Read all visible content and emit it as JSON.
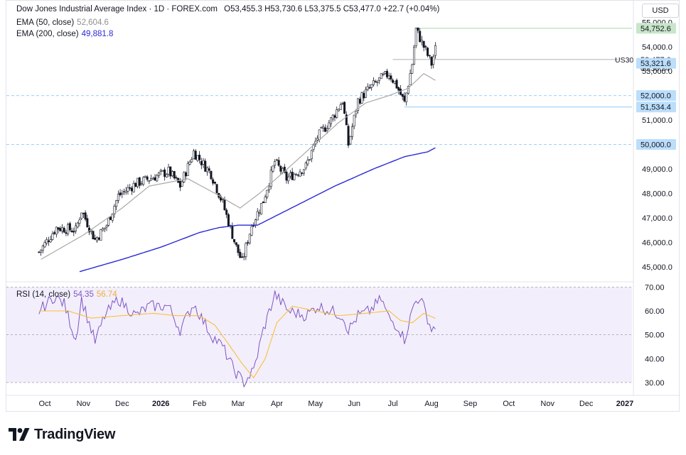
{
  "header": {
    "title": "Dow Jones Industrial Average Index · 1D · FOREX.com",
    "ohlc": {
      "o_label": "O",
      "o": "53,455.3",
      "h_label": "H",
      "h": "53,730.6",
      "l_label": "L",
      "l": "53,375.5",
      "c_label": "C",
      "c": "53,477.0",
      "change": "+22.7 (+0.04%)"
    },
    "ema50": {
      "label": "EMA (50, close)",
      "value": "52,604.6"
    },
    "ema200": {
      "label": "EMA (200, close)",
      "value": "49,881.8"
    },
    "currency": "USD"
  },
  "rsi_legend": {
    "label": "RSI (14, close)",
    "value": "54.35",
    "ma_value": "56.74"
  },
  "branding": {
    "name": "TradingView"
  },
  "colors": {
    "ema50": "#a9a9a9",
    "ema200": "#2a2ad8",
    "rsi": "#7e57c2",
    "rsi_ma": "#f7c23a",
    "rsi_band": "#f3eefc",
    "green_label": "#c8e6c9",
    "blue_label": "#bbdefb",
    "candle": "#131722"
  },
  "chart_data": [
    {
      "type": "candlestick",
      "title": "Dow Jones Industrial Average Index · 1D · FOREX.com",
      "symbol_label": "US30",
      "x_ticks": [
        "Oct",
        "Nov",
        "Dec",
        "2026",
        "Feb",
        "Mar",
        "Apr",
        "May",
        "Jun",
        "Jul",
        "Aug",
        "Sep",
        "Oct",
        "Nov",
        "Dec",
        "2027"
      ],
      "y_ticks": [
        "55,000.0",
        "54,000.0",
        "53,000.0",
        "52,000.0",
        "51,000.0",
        "50,000.0",
        "49,000.0",
        "48,000.0",
        "47,000.0",
        "46,000.0",
        "45,000.0"
      ],
      "y_tick_values": [
        55000,
        54000,
        53000,
        52000,
        51000,
        50000,
        49000,
        48000,
        47000,
        46000,
        45000
      ],
      "ylim": [
        44500,
        55300
      ],
      "x_month_index": [
        0,
        1,
        2,
        3,
        4,
        5,
        6,
        7,
        8,
        9,
        10,
        11,
        12,
        13,
        14,
        15
      ],
      "close_anchors": [
        [
          -0.15,
          45600
        ],
        [
          0.3,
          46600
        ],
        [
          0.8,
          46500
        ],
        [
          0.95,
          47300
        ],
        [
          1.3,
          46100
        ],
        [
          1.6,
          46700
        ],
        [
          1.9,
          47900
        ],
        [
          2.35,
          48400
        ],
        [
          2.7,
          48600
        ],
        [
          3.2,
          48900
        ],
        [
          3.5,
          48300
        ],
        [
          3.85,
          49700
        ],
        [
          4.3,
          48800
        ],
        [
          4.6,
          47600
        ],
        [
          4.95,
          45800
        ],
        [
          5.1,
          45200
        ],
        [
          5.35,
          46700
        ],
        [
          5.65,
          47700
        ],
        [
          5.95,
          49300
        ],
        [
          6.25,
          48600
        ],
        [
          6.75,
          49100
        ],
        [
          7.05,
          50300
        ],
        [
          7.4,
          51000
        ],
        [
          7.7,
          51800
        ],
        [
          7.85,
          50000
        ],
        [
          8.1,
          51800
        ],
        [
          8.4,
          52300
        ],
        [
          8.7,
          52700
        ],
        [
          8.9,
          52900
        ],
        [
          9.1,
          52400
        ],
        [
          9.3,
          51700
        ],
        [
          9.5,
          53300
        ],
        [
          9.6,
          54700
        ],
        [
          9.8,
          54000
        ],
        [
          10.0,
          53300
        ],
        [
          10.1,
          53900
        ],
        [
          10.12,
          53477
        ]
      ],
      "ema50_anchors": [
        [
          -0.1,
          45300
        ],
        [
          1.0,
          46300
        ],
        [
          2.0,
          47400
        ],
        [
          2.7,
          48300
        ],
        [
          3.7,
          48600
        ],
        [
          4.4,
          48000
        ],
        [
          5.05,
          47400
        ],
        [
          5.55,
          48000
        ],
        [
          6.2,
          48900
        ],
        [
          6.9,
          49900
        ],
        [
          7.6,
          50900
        ],
        [
          8.3,
          51700
        ],
        [
          8.9,
          52000
        ],
        [
          9.4,
          52300
        ],
        [
          9.8,
          52900
        ],
        [
          10.12,
          52604.6
        ]
      ],
      "ema200_anchors": [
        [
          0.9,
          44800
        ],
        [
          2.0,
          45300
        ],
        [
          3.0,
          45800
        ],
        [
          4.0,
          46400
        ],
        [
          4.5,
          46600
        ],
        [
          5.0,
          46700
        ],
        [
          5.5,
          46700
        ],
        [
          6.5,
          47500
        ],
        [
          7.5,
          48300
        ],
        [
          8.5,
          49000
        ],
        [
          9.3,
          49500
        ],
        [
          9.9,
          49700
        ],
        [
          10.12,
          49881.8
        ]
      ],
      "price_lines": [
        {
          "value": 54752.6,
          "label": "54,752.6",
          "style": "solid",
          "label_color": "green"
        },
        {
          "value": 53477.0,
          "label": "53,477.0",
          "sub_label": "06:38:24",
          "style": "solid",
          "label_color": "none"
        },
        {
          "value": 53321.6,
          "label": "53,321.6",
          "style": "none",
          "label_color": "blue"
        },
        {
          "value": 52000.0,
          "label": "52,000.0",
          "style": "dashed",
          "label_color": "blue"
        },
        {
          "value": 51534.4,
          "label": "51,534.4",
          "style": "solid",
          "label_color": "blue"
        },
        {
          "value": 50000.0,
          "label": "50,000.0",
          "style": "dashed",
          "label_color": "blue"
        }
      ]
    },
    {
      "type": "line",
      "title": "RSI (14, close)",
      "y_ticks": [
        "70.00",
        "60.00",
        "50.00",
        "40.00",
        "30.00"
      ],
      "y_tick_values": [
        70,
        60,
        50,
        40,
        30
      ],
      "ylim": [
        27,
        71
      ],
      "band": [
        30,
        70
      ],
      "rsi_anchors": [
        [
          -0.15,
          60
        ],
        [
          0.25,
          66
        ],
        [
          0.5,
          63
        ],
        [
          0.8,
          48
        ],
        [
          0.95,
          65
        ],
        [
          1.3,
          47
        ],
        [
          1.55,
          58
        ],
        [
          1.9,
          65
        ],
        [
          2.35,
          58
        ],
        [
          2.7,
          62
        ],
        [
          3.2,
          62
        ],
        [
          3.5,
          52
        ],
        [
          3.85,
          63
        ],
        [
          4.3,
          50
        ],
        [
          4.6,
          45
        ],
        [
          4.9,
          35
        ],
        [
          5.15,
          30
        ],
        [
          5.4,
          35
        ],
        [
          5.65,
          52
        ],
        [
          5.95,
          67
        ],
        [
          6.3,
          60
        ],
        [
          6.75,
          58
        ],
        [
          7.05,
          62
        ],
        [
          7.4,
          60
        ],
        [
          7.7,
          58
        ],
        [
          7.85,
          52
        ],
        [
          8.1,
          58
        ],
        [
          8.4,
          60
        ],
        [
          8.7,
          65
        ],
        [
          8.9,
          57
        ],
        [
          9.15,
          53
        ],
        [
          9.3,
          48
        ],
        [
          9.55,
          63
        ],
        [
          9.7,
          66
        ],
        [
          9.9,
          57
        ],
        [
          10.0,
          52
        ],
        [
          10.12,
          54.35
        ]
      ],
      "rsi_ma_anchors": [
        [
          -0.15,
          60
        ],
        [
          0.6,
          60
        ],
        [
          1.2,
          57
        ],
        [
          2.0,
          58
        ],
        [
          2.8,
          59
        ],
        [
          3.4,
          58
        ],
        [
          4.0,
          58
        ],
        [
          4.4,
          54
        ],
        [
          4.8,
          45
        ],
        [
          5.1,
          38
        ],
        [
          5.4,
          32
        ],
        [
          5.7,
          40
        ],
        [
          6.0,
          55
        ],
        [
          6.4,
          62
        ],
        [
          7.0,
          60
        ],
        [
          7.6,
          58
        ],
        [
          8.3,
          59
        ],
        [
          8.9,
          60
        ],
        [
          9.2,
          56
        ],
        [
          9.5,
          55
        ],
        [
          9.8,
          59
        ],
        [
          10.12,
          56.74
        ]
      ]
    }
  ]
}
